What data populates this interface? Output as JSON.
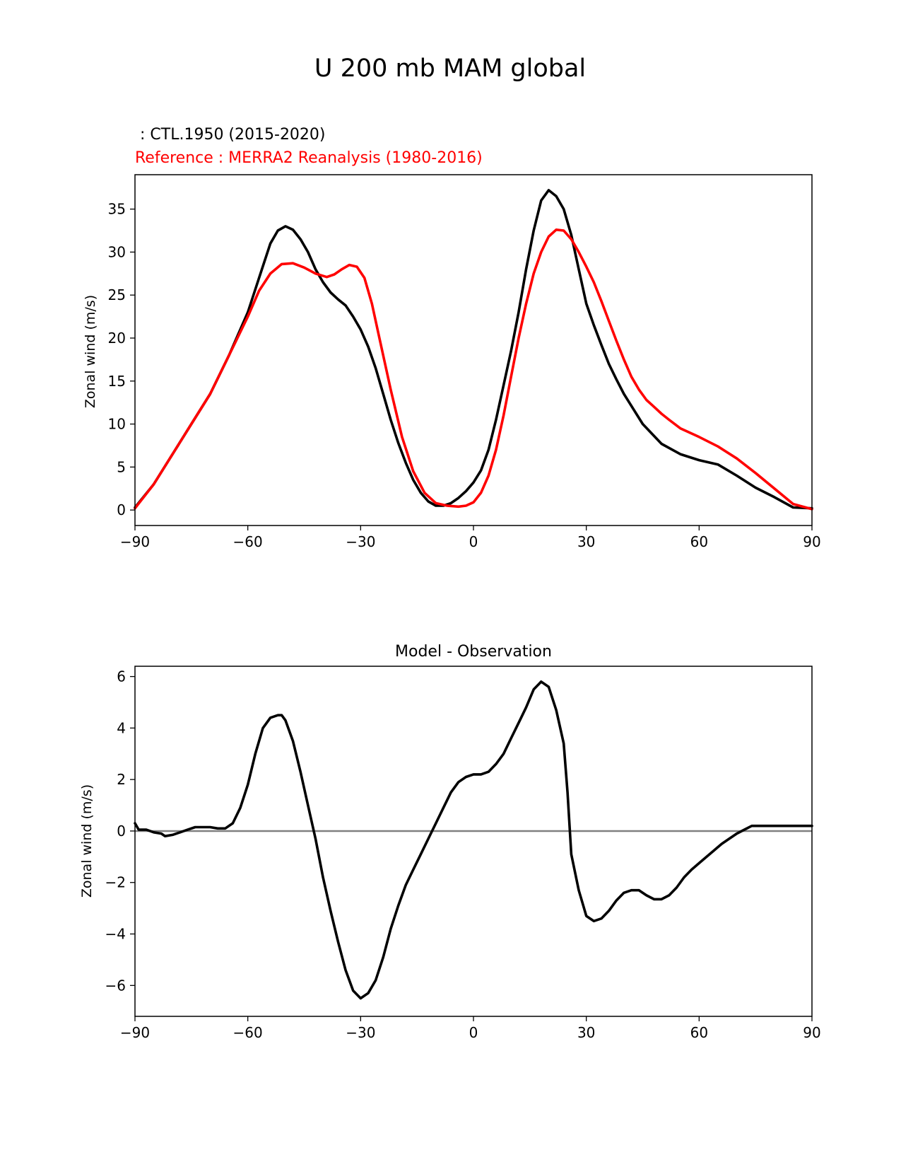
{
  "figure": {
    "title": "U 200 mb MAM global"
  },
  "chart_data": [
    {
      "type": "line",
      "title": "",
      "legend_text": [
        {
          "text": " : CTL.1950 (2015-2020)",
          "color": "#000000"
        },
        {
          "text": "Reference : MERRA2 Reanalysis (1980-2016)",
          "color": "#ff0000"
        }
      ],
      "xlabel": "",
      "ylabel": "Zonal wind (m/s)",
      "xlim": [
        -90,
        90
      ],
      "ylim": [
        -1.8,
        39
      ],
      "xticks": [
        -90,
        -60,
        -30,
        0,
        30,
        60,
        90
      ],
      "xtick_labels": [
        "−90",
        "−60",
        "−30",
        "0",
        "30",
        "60",
        "90"
      ],
      "yticks": [
        0,
        5,
        10,
        15,
        20,
        25,
        30,
        35
      ],
      "ytick_labels": [
        "0",
        "5",
        "10",
        "15",
        "20",
        "25",
        "30",
        "35"
      ],
      "series": [
        {
          "name": "CTL.1950 (2015-2020)",
          "color": "#000000",
          "x": [
            -90,
            -85,
            -80,
            -75,
            -70,
            -65,
            -60,
            -57,
            -54,
            -52,
            -50,
            -48,
            -46,
            -44,
            -42,
            -40,
            -38,
            -36,
            -34,
            -32,
            -30,
            -28,
            -26,
            -24,
            -22,
            -20,
            -18,
            -16,
            -14,
            -12,
            -10,
            -8,
            -6,
            -4,
            -2,
            0,
            2,
            4,
            6,
            8,
            10,
            12,
            14,
            16,
            18,
            20,
            22,
            24,
            26,
            28,
            30,
            32,
            34,
            36,
            38,
            40,
            45,
            50,
            55,
            60,
            65,
            70,
            75,
            80,
            85,
            90
          ],
          "y": [
            0.3,
            3,
            6.5,
            10,
            13.5,
            18,
            23,
            27,
            31,
            32.5,
            33,
            32.6,
            31.5,
            30,
            28,
            26.5,
            25.3,
            24.5,
            23.8,
            22.5,
            21,
            19,
            16.5,
            13.5,
            10.5,
            7.8,
            5.5,
            3.5,
            2,
            1,
            0.5,
            0.5,
            0.8,
            1.4,
            2.2,
            3.2,
            4.6,
            7,
            10.5,
            14.5,
            18.5,
            23,
            28,
            32.5,
            36,
            37.2,
            36.5,
            35,
            32,
            28,
            24,
            21.5,
            19.2,
            17,
            15.2,
            13.5,
            10,
            7.7,
            6.5,
            5.8,
            5.3,
            4,
            2.6,
            1.5,
            0.3,
            0.2
          ]
        },
        {
          "name": "Reference : MERRA2 Reanalysis (1980-2016)",
          "color": "#ff0000",
          "x": [
            -90,
            -85,
            -80,
            -75,
            -70,
            -65,
            -60,
            -57,
            -54,
            -51,
            -48,
            -45,
            -42,
            -39,
            -37,
            -35,
            -33,
            -31,
            -29,
            -27,
            -25,
            -22,
            -19,
            -16,
            -13,
            -10,
            -7,
            -4,
            -2,
            0,
            2,
            4,
            6,
            8,
            10,
            12,
            14,
            16,
            18,
            20,
            22,
            24,
            26,
            28,
            30,
            32,
            34,
            36,
            38,
            40,
            42,
            44,
            46,
            48,
            50,
            52,
            55,
            60,
            65,
            70,
            75,
            80,
            85,
            90
          ],
          "y": [
            0.2,
            3,
            6.5,
            10,
            13.5,
            18,
            22.5,
            25.5,
            27.5,
            28.6,
            28.7,
            28.2,
            27.5,
            27.1,
            27.4,
            28,
            28.5,
            28.3,
            27,
            24,
            20,
            14,
            8.5,
            4.5,
            2,
            0.8,
            0.5,
            0.4,
            0.5,
            0.9,
            2,
            4,
            7,
            11,
            15.5,
            20,
            24,
            27.5,
            30,
            31.8,
            32.6,
            32.5,
            31.5,
            30,
            28.3,
            26.5,
            24.3,
            22,
            19.7,
            17.5,
            15.5,
            14,
            12.8,
            12,
            11.2,
            10.5,
            9.5,
            8.5,
            7.4,
            6,
            4.3,
            2.5,
            0.7,
            0.1
          ]
        }
      ]
    },
    {
      "type": "line",
      "title": "Model - Observation",
      "xlabel": "",
      "ylabel": "Zonal wind (m/s)",
      "xlim": [
        -90,
        90
      ],
      "ylim": [
        -7.2,
        6.4
      ],
      "xticks": [
        -90,
        -60,
        -30,
        0,
        30,
        60,
        90
      ],
      "xtick_labels": [
        "−90",
        "−60",
        "−30",
        "0",
        "30",
        "60",
        "90"
      ],
      "yticks": [
        -6,
        -4,
        -2,
        0,
        2,
        4,
        6
      ],
      "ytick_labels": [
        "−6",
        "−4",
        "−2",
        "0",
        "2",
        "4",
        "6"
      ],
      "zero_line": {
        "y": 0,
        "color": "#808080"
      },
      "series": [
        {
          "name": "Model - Observation",
          "color": "#000000",
          "x": [
            -90,
            -89,
            -87,
            -85,
            -83,
            -82,
            -80,
            -78,
            -76,
            -74,
            -72,
            -70,
            -68,
            -66,
            -64,
            -62,
            -60,
            -58,
            -56,
            -54,
            -52,
            -51,
            -50,
            -48,
            -46,
            -44,
            -42,
            -40,
            -38,
            -36,
            -34,
            -32,
            -30,
            -28,
            -26,
            -24,
            -22,
            -20,
            -18,
            -16,
            -14,
            -12,
            -10,
            -8,
            -6,
            -4,
            -2,
            0,
            2,
            4,
            6,
            8,
            10,
            12,
            14,
            16,
            18,
            20,
            22,
            24,
            25,
            26,
            28,
            30,
            32,
            34,
            36,
            38,
            40,
            42,
            44,
            46,
            48,
            50,
            52,
            54,
            56,
            58,
            60,
            62,
            64,
            66,
            68,
            70,
            72,
            74,
            76,
            78,
            80,
            82,
            84,
            86,
            88,
            90
          ],
          "y": [
            0.3,
            0.05,
            0.05,
            -0.05,
            -0.1,
            -0.2,
            -0.15,
            -0.05,
            0.05,
            0.15,
            0.15,
            0.15,
            0.1,
            0.1,
            0.3,
            0.9,
            1.8,
            3,
            4,
            4.4,
            4.5,
            4.5,
            4.3,
            3.5,
            2.3,
            1,
            -0.3,
            -1.8,
            -3.1,
            -4.3,
            -5.4,
            -6.2,
            -6.5,
            -6.3,
            -5.8,
            -4.9,
            -3.8,
            -2.9,
            -2.1,
            -1.5,
            -0.9,
            -0.3,
            0.3,
            0.9,
            1.5,
            1.9,
            2.1,
            2.2,
            2.2,
            2.3,
            2.6,
            3,
            3.6,
            4.2,
            4.8,
            5.5,
            5.8,
            5.6,
            4.7,
            3.4,
            1.5,
            -0.9,
            -2.3,
            -3.3,
            -3.5,
            -3.4,
            -3.1,
            -2.7,
            -2.4,
            -2.3,
            -2.3,
            -2.5,
            -2.65,
            -2.65,
            -2.5,
            -2.2,
            -1.8,
            -1.5,
            -1.25,
            -1,
            -0.75,
            -0.5,
            -0.3,
            -0.1,
            0.05,
            0.2,
            0.2,
            0.2,
            0.2,
            0.2,
            0.2,
            0.2,
            0.2,
            0.2
          ]
        }
      ]
    }
  ]
}
